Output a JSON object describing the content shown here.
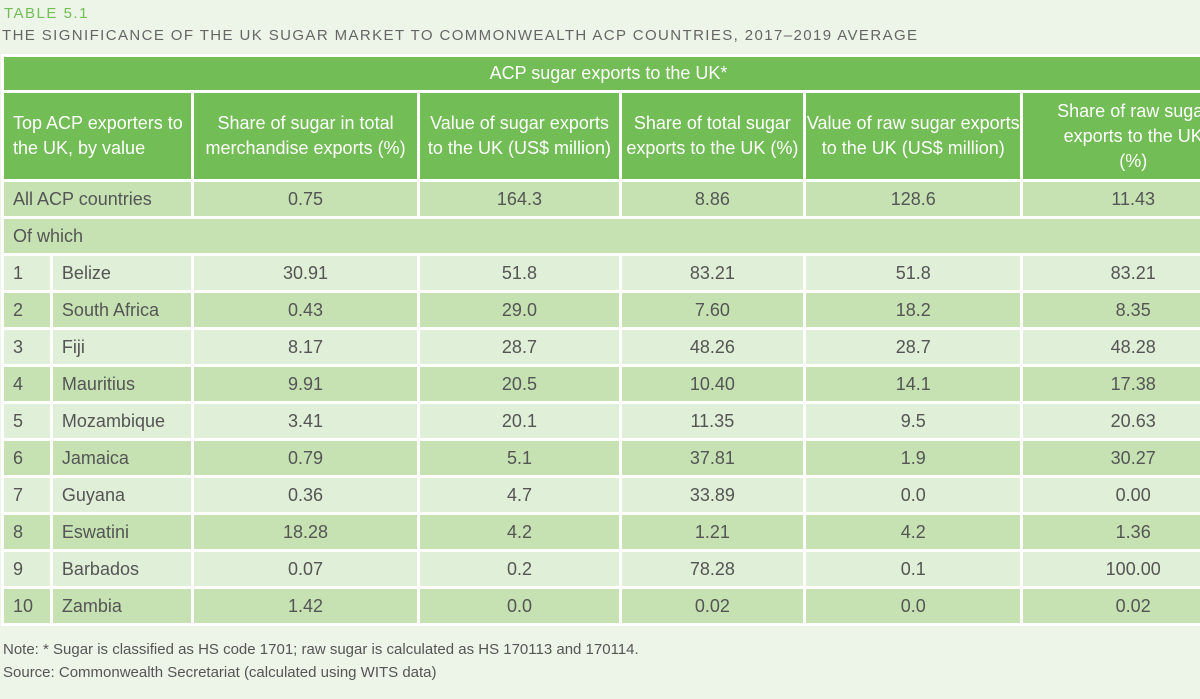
{
  "table_label": "TABLE 5.1",
  "table_title": "THE SIGNIFICANCE OF THE UK SUGAR MARKET TO COMMONWEALTH ACP COUNTRIES, 2017–2019 AVERAGE",
  "group_header": "ACP sugar exports to the UK*",
  "columns": [
    "Top ACP exporters to the UK, by value",
    "Share of sugar in total merchandise exports (%)",
    "Value of sugar exports to the UK (US$ million)",
    "Share of total sugar exports to the UK (%)",
    "Value of raw sugar exports to the UK (US$ million)",
    "Share of raw sugar exports to the UK (%)"
  ],
  "total_row": {
    "name": "All ACP countries",
    "values": [
      "0.75",
      "164.3",
      "8.86",
      "128.6",
      "11.43"
    ]
  },
  "subheading": "Of which",
  "rows": [
    {
      "rank": "1",
      "name": "Belize",
      "values": [
        "30.91",
        "51.8",
        "83.21",
        "51.8",
        "83.21"
      ]
    },
    {
      "rank": "2",
      "name": "South Africa",
      "values": [
        "0.43",
        "29.0",
        "7.60",
        "18.2",
        "8.35"
      ]
    },
    {
      "rank": "3",
      "name": "Fiji",
      "values": [
        "8.17",
        "28.7",
        "48.26",
        "28.7",
        "48.28"
      ]
    },
    {
      "rank": "4",
      "name": "Mauritius",
      "values": [
        "9.91",
        "20.5",
        "10.40",
        "14.1",
        "17.38"
      ]
    },
    {
      "rank": "5",
      "name": "Mozambique",
      "values": [
        "3.41",
        "20.1",
        "11.35",
        "9.5",
        "20.63"
      ]
    },
    {
      "rank": "6",
      "name": "Jamaica",
      "values": [
        "0.79",
        "5.1",
        "37.81",
        "1.9",
        "30.27"
      ]
    },
    {
      "rank": "7",
      "name": "Guyana",
      "values": [
        "0.36",
        "4.7",
        "33.89",
        "0.0",
        "0.00"
      ]
    },
    {
      "rank": "8",
      "name": "Eswatini",
      "values": [
        "18.28",
        "4.2",
        "1.21",
        "4.2",
        "1.36"
      ]
    },
    {
      "rank": "9",
      "name": "Barbados",
      "values": [
        "0.07",
        "0.2",
        "78.28",
        "0.1",
        "100.00"
      ]
    },
    {
      "rank": "10",
      "name": "Zambia",
      "values": [
        "1.42",
        "0.0",
        "0.02",
        "0.0",
        "0.02"
      ]
    }
  ],
  "note": "Note: * Sugar is classified as HS code 1701; raw sugar is calculated as HS 170113 and 170114.",
  "source": "Source: Commonwealth Secretariat (calculated using WITS data)",
  "colors": {
    "header_green": "#72bd55",
    "row_dark": "#c6e2b3",
    "row_light": "#e0efd8",
    "background": "#edf5e8"
  }
}
